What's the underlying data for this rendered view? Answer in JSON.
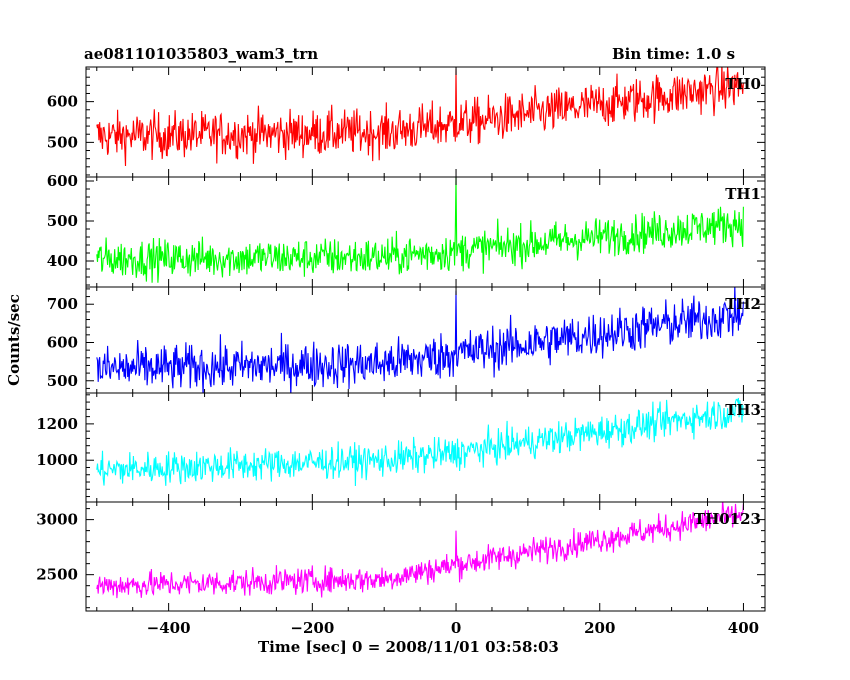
{
  "header": {
    "source_label": "ae081101035803_wam3_trn",
    "bin_time": "Bin time: 1.0 s"
  },
  "axes": {
    "ylabel": "Counts/sec",
    "xlabel": "Time [sec] 0 = 2008/11/01 03:58:03",
    "x_ticks": [
      -400,
      -200,
      0,
      200,
      400
    ],
    "xlim": [
      -515,
      430
    ]
  },
  "colors": {
    "TH0": "#ff0000",
    "TH1": "#00ff00",
    "TH2": "#0000ff",
    "TH3": "#00ffff",
    "TH0123": "#ff00ff"
  },
  "chart_data": [
    {
      "type": "line",
      "name": "TH0",
      "label": "TH0",
      "ylim": [
        415,
        685
      ],
      "yticks": [
        500,
        600
      ],
      "x_range": [
        -500,
        400
      ],
      "trend": [
        [
          -500,
          515
        ],
        [
          -100,
          525
        ],
        [
          0,
          545
        ],
        [
          400,
          640
        ]
      ],
      "noise": 28,
      "spikes": [
        [
          0,
          680
        ]
      ]
    },
    {
      "type": "line",
      "name": "TH1",
      "label": "TH1",
      "ylim": [
        335,
        610
      ],
      "yticks": [
        400,
        500,
        600
      ],
      "x_range": [
        -500,
        400
      ],
      "trend": [
        [
          -500,
          405
        ],
        [
          -100,
          410
        ],
        [
          0,
          425
        ],
        [
          400,
          495
        ]
      ],
      "noise": 24,
      "spikes": [
        [
          0,
          610
        ]
      ]
    },
    {
      "type": "line",
      "name": "TH2",
      "label": "TH2",
      "ylim": [
        468,
        745
      ],
      "yticks": [
        500,
        600,
        700
      ],
      "x_range": [
        -500,
        400
      ],
      "trend": [
        [
          -500,
          530
        ],
        [
          -100,
          545
        ],
        [
          0,
          570
        ],
        [
          400,
          675
        ]
      ],
      "noise": 30,
      "spikes": [
        [
          0,
          735
        ]
      ]
    },
    {
      "type": "line",
      "name": "TH3",
      "label": "TH3",
      "ylim": [
        770,
        1370
      ],
      "yticks": [
        1000,
        1200
      ],
      "x_range": [
        -500,
        400
      ],
      "trend": [
        [
          -500,
          945
        ],
        [
          -100,
          1000
        ],
        [
          0,
          1040
        ],
        [
          400,
          1275
        ]
      ],
      "noise": 45,
      "spikes": []
    },
    {
      "type": "line",
      "name": "TH0123",
      "label": "TH0123",
      "ylim": [
        2170,
        3160
      ],
      "yticks": [
        2500,
        3000
      ],
      "x_range": [
        -500,
        400
      ],
      "trend": [
        [
          -500,
          2400
        ],
        [
          -100,
          2460
        ],
        [
          0,
          2590
        ],
        [
          400,
          3050
        ]
      ],
      "noise": 60,
      "spikes": [
        [
          0,
          2900
        ]
      ]
    }
  ]
}
